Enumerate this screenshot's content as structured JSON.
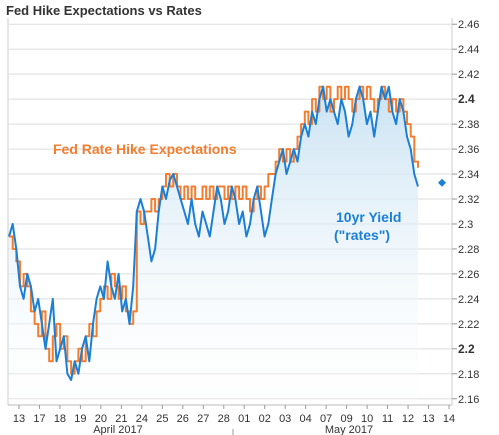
{
  "chart_data": {
    "type": "line",
    "title": "Fed Hike Expectations vs Rates",
    "xlabel": "",
    "ylabel": "",
    "ylim": [
      2.155,
      2.465
    ],
    "yticks": [
      "2.16",
      "2.18",
      "2.2",
      "2.22",
      "2.24",
      "2.26",
      "2.28",
      "2.3",
      "2.32",
      "2.34",
      "2.36",
      "2.38",
      "2.4",
      "2.42",
      "2.44",
      "2.46"
    ],
    "yticks_bold": [
      "2.2",
      "2.4"
    ],
    "x_tick_labels": [
      "13",
      "17",
      "18",
      "19",
      "20",
      "21",
      "24",
      "25",
      "26",
      "27",
      "28",
      "01",
      "02",
      "03",
      "04",
      "07",
      "09",
      "10",
      "11",
      "12",
      "13",
      "14"
    ],
    "month_labels": [
      "April 2017",
      "May 2017"
    ],
    "grid": "horizontal",
    "annotations": [
      {
        "text": "Fed Rate Hike Expectations",
        "color": "#f47d30"
      },
      {
        "text": "10yr Yield",
        "color": "#1b7fd6"
      },
      {
        "text": "(\"rates\")",
        "color": "#1b7fd6"
      }
    ],
    "last_value_marker": {
      "value": 2.333,
      "color": "#1b7fd6"
    },
    "colors": {
      "yield": "#1b7fd6",
      "expectations": "#f47d30",
      "grid": "#dddddd",
      "fill_top": "#c9e2f3",
      "fill_bottom": "#ffffff"
    },
    "series": [
      {
        "key": "yield",
        "values": [
          2.29,
          2.3,
          2.28,
          2.25,
          2.24,
          2.26,
          2.25,
          2.23,
          2.24,
          2.22,
          2.2,
          2.22,
          2.24,
          2.19,
          2.2,
          2.21,
          2.18,
          2.175,
          2.19,
          2.18,
          2.2,
          2.21,
          2.19,
          2.22,
          2.24,
          2.25,
          2.24,
          2.27,
          2.25,
          2.24,
          2.26,
          2.23,
          2.24,
          2.22,
          2.25,
          2.31,
          2.32,
          2.31,
          2.29,
          2.27,
          2.28,
          2.31,
          2.33,
          2.32,
          2.335,
          2.34,
          2.33,
          2.32,
          2.31,
          2.3,
          2.32,
          2.3,
          2.29,
          2.31,
          2.3,
          2.29,
          2.31,
          2.33,
          2.32,
          2.3,
          2.31,
          2.33,
          2.32,
          2.3,
          2.31,
          2.29,
          2.3,
          2.32,
          2.33,
          2.31,
          2.29,
          2.3,
          2.32,
          2.34,
          2.35,
          2.36,
          2.34,
          2.35,
          2.36,
          2.35,
          2.37,
          2.38,
          2.37,
          2.39,
          2.38,
          2.4,
          2.41,
          2.39,
          2.4,
          2.39,
          2.38,
          2.4,
          2.39,
          2.37,
          2.38,
          2.4,
          2.41,
          2.4,
          2.38,
          2.39,
          2.37,
          2.39,
          2.41,
          2.4,
          2.41,
          2.39,
          2.38,
          2.4,
          2.39,
          2.37,
          2.36,
          2.34,
          2.33
        ]
      },
      {
        "key": "expectations",
        "values": [
          2.29,
          2.28,
          2.27,
          2.25,
          2.26,
          2.25,
          2.23,
          2.22,
          2.21,
          2.23,
          2.2,
          2.19,
          2.21,
          2.22,
          2.2,
          2.21,
          2.19,
          2.18,
          2.19,
          2.2,
          2.19,
          2.21,
          2.22,
          2.21,
          2.23,
          2.24,
          2.25,
          2.24,
          2.26,
          2.25,
          2.24,
          2.25,
          2.23,
          2.22,
          2.23,
          2.31,
          2.3,
          2.31,
          2.31,
          2.32,
          2.31,
          2.32,
          2.33,
          2.34,
          2.33,
          2.34,
          2.33,
          2.32,
          2.33,
          2.32,
          2.33,
          2.32,
          2.32,
          2.33,
          2.32,
          2.33,
          2.32,
          2.33,
          2.33,
          2.32,
          2.33,
          2.32,
          2.33,
          2.32,
          2.33,
          2.32,
          2.31,
          2.32,
          2.33,
          2.32,
          2.33,
          2.34,
          2.34,
          2.35,
          2.36,
          2.35,
          2.36,
          2.35,
          2.36,
          2.37,
          2.38,
          2.39,
          2.38,
          2.4,
          2.39,
          2.41,
          2.4,
          2.41,
          2.39,
          2.4,
          2.41,
          2.4,
          2.41,
          2.4,
          2.39,
          2.4,
          2.41,
          2.4,
          2.41,
          2.4,
          2.39,
          2.4,
          2.41,
          2.4,
          2.39,
          2.4,
          2.39,
          2.4,
          2.39,
          2.38,
          2.37,
          2.35,
          2.345
        ]
      }
    ]
  }
}
